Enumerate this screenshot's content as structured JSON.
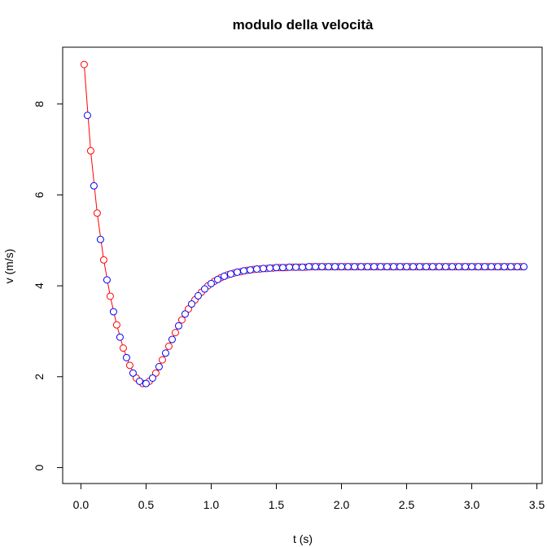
{
  "chart_data": {
    "type": "scatter",
    "title": "modulo della velocità",
    "xlabel": "t (s)",
    "ylabel": "v (m/s)",
    "xlim": [
      -0.14,
      3.54
    ],
    "ylim": [
      -0.35,
      9.25
    ],
    "xticks": [
      0.0,
      0.5,
      1.0,
      1.5,
      2.0,
      2.5,
      3.0,
      3.5
    ],
    "xtick_labels": [
      "0.0",
      "0.5",
      "1.0",
      "1.5",
      "2.0",
      "2.5",
      "3.0",
      "3.5"
    ],
    "yticks": [
      0,
      2,
      4,
      6,
      8
    ],
    "ytick_labels": [
      "0",
      "2",
      "4",
      "6",
      "8"
    ],
    "grid": false,
    "series": [
      {
        "marker": "open-circle",
        "color": "#ff0000",
        "line": true,
        "line_color": "#ff0000",
        "x": [
          0.025,
          0.075,
          0.125,
          0.175,
          0.225,
          0.275,
          0.325,
          0.375,
          0.425,
          0.475,
          0.525,
          0.575,
          0.625,
          0.675,
          0.725,
          0.775,
          0.825,
          0.875,
          0.925,
          0.975,
          1.025,
          1.075,
          1.125,
          1.175,
          1.225,
          1.275,
          1.325,
          1.375,
          1.425,
          1.475,
          1.525,
          1.575,
          1.625,
          1.675,
          1.725,
          1.775,
          1.825,
          1.875,
          1.925,
          1.975,
          2.025,
          2.075,
          2.125,
          2.175,
          2.225,
          2.275,
          2.325,
          2.375,
          2.425,
          2.475,
          2.525,
          2.575,
          2.625,
          2.675,
          2.725,
          2.775,
          2.825,
          2.875,
          2.925,
          2.975,
          3.025,
          3.075,
          3.125,
          3.175,
          3.225,
          3.275,
          3.325,
          3.375
        ],
        "y": [
          8.87,
          6.97,
          5.6,
          4.57,
          3.77,
          3.14,
          2.63,
          2.25,
          1.97,
          1.85,
          1.9,
          2.08,
          2.37,
          2.67,
          2.97,
          3.25,
          3.49,
          3.69,
          3.86,
          4.0,
          4.1,
          4.18,
          4.24,
          4.28,
          4.31,
          4.34,
          4.36,
          4.37,
          4.38,
          4.39,
          4.4,
          4.4,
          4.41,
          4.41,
          4.41,
          4.42,
          4.42,
          4.42,
          4.42,
          4.42,
          4.42,
          4.42,
          4.42,
          4.42,
          4.42,
          4.42,
          4.42,
          4.42,
          4.42,
          4.42,
          4.42,
          4.42,
          4.42,
          4.42,
          4.42,
          4.42,
          4.42,
          4.42,
          4.42,
          4.42,
          4.42,
          4.42,
          4.42,
          4.42,
          4.42,
          4.42,
          4.42,
          4.42
        ]
      },
      {
        "marker": "open-circle",
        "color": "#0000ff",
        "line": false,
        "x": [
          0.05,
          0.1,
          0.15,
          0.2,
          0.25,
          0.3,
          0.35,
          0.4,
          0.45,
          0.5,
          0.55,
          0.6,
          0.65,
          0.7,
          0.75,
          0.8,
          0.85,
          0.9,
          0.95,
          1.0,
          1.05,
          1.1,
          1.15,
          1.2,
          1.25,
          1.3,
          1.35,
          1.4,
          1.45,
          1.5,
          1.55,
          1.6,
          1.65,
          1.7,
          1.75,
          1.8,
          1.85,
          1.9,
          1.95,
          2.0,
          2.05,
          2.1,
          2.15,
          2.2,
          2.25,
          2.3,
          2.35,
          2.4,
          2.45,
          2.5,
          2.55,
          2.6,
          2.65,
          2.7,
          2.75,
          2.8,
          2.85,
          2.9,
          2.95,
          3.0,
          3.05,
          3.1,
          3.15,
          3.2,
          3.25,
          3.3,
          3.35,
          3.4
        ],
        "y": [
          7.75,
          6.2,
          5.02,
          4.13,
          3.43,
          2.87,
          2.42,
          2.08,
          1.9,
          1.85,
          1.97,
          2.22,
          2.52,
          2.82,
          3.12,
          3.38,
          3.6,
          3.78,
          3.93,
          4.05,
          4.14,
          4.21,
          4.26,
          4.3,
          4.33,
          4.35,
          4.37,
          4.38,
          4.39,
          4.4,
          4.4,
          4.41,
          4.41,
          4.41,
          4.42,
          4.42,
          4.42,
          4.42,
          4.42,
          4.42,
          4.42,
          4.42,
          4.42,
          4.42,
          4.42,
          4.42,
          4.42,
          4.42,
          4.42,
          4.42,
          4.42,
          4.42,
          4.42,
          4.42,
          4.42,
          4.42,
          4.42,
          4.42,
          4.42,
          4.42,
          4.42,
          4.42,
          4.42,
          4.42,
          4.42,
          4.42,
          4.42,
          4.42
        ]
      }
    ]
  }
}
